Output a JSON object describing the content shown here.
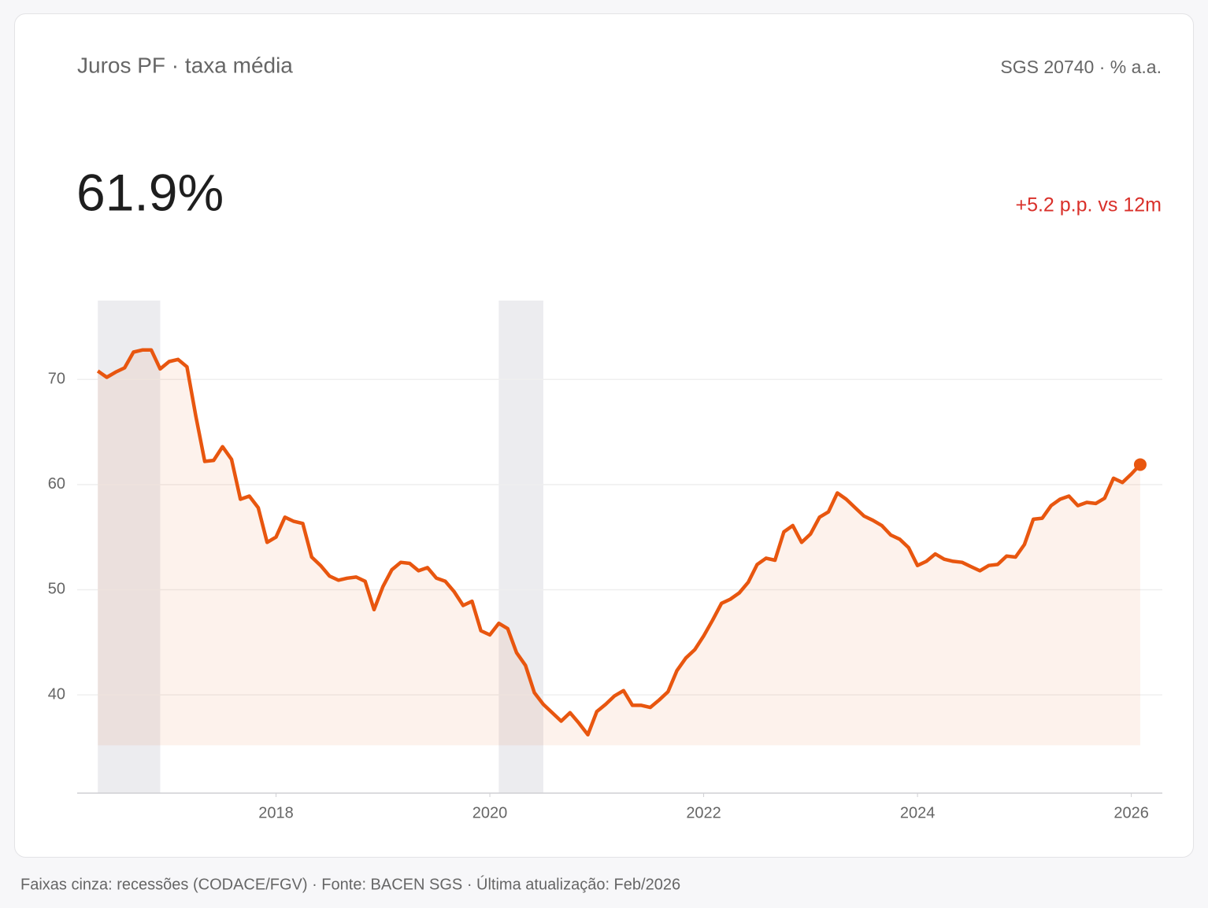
{
  "chart_data": {
    "type": "line",
    "title": "Juros PF · taxa média",
    "source": "SGS 20740  ·  % a.a.",
    "value_label": "61.9%",
    "change_label": "+5.2 p.p. vs 12m",
    "footer": "Faixas cinza: recessões (CODACE/FGV)  ·  Fonte: BACEN SGS  ·  Última atualização: Feb/2026",
    "x": [
      "2016-05",
      "2016-06",
      "2016-07",
      "2016-08",
      "2016-09",
      "2016-10",
      "2016-11",
      "2016-12",
      "2017-01",
      "2017-02",
      "2017-03",
      "2017-04",
      "2017-05",
      "2017-06",
      "2017-07",
      "2017-08",
      "2017-09",
      "2017-10",
      "2017-11",
      "2017-12",
      "2018-01",
      "2018-02",
      "2018-03",
      "2018-04",
      "2018-05",
      "2018-06",
      "2018-07",
      "2018-08",
      "2018-09",
      "2018-10",
      "2018-11",
      "2018-12",
      "2019-01",
      "2019-02",
      "2019-03",
      "2019-04",
      "2019-05",
      "2019-06",
      "2019-07",
      "2019-08",
      "2019-09",
      "2019-10",
      "2019-11",
      "2019-12",
      "2020-01",
      "2020-02",
      "2020-03",
      "2020-04",
      "2020-05",
      "2020-06",
      "2020-07",
      "2020-08",
      "2020-09",
      "2020-10",
      "2020-11",
      "2020-12",
      "2021-01",
      "2021-02",
      "2021-03",
      "2021-04",
      "2021-05",
      "2021-06",
      "2021-07",
      "2021-08",
      "2021-09",
      "2021-10",
      "2021-11",
      "2021-12",
      "2022-01",
      "2022-02",
      "2022-03",
      "2022-04",
      "2022-05",
      "2022-06",
      "2022-07",
      "2022-08",
      "2022-09",
      "2022-10",
      "2022-11",
      "2022-12",
      "2023-01",
      "2023-02",
      "2023-03",
      "2023-04",
      "2023-05",
      "2023-06",
      "2023-07",
      "2023-08",
      "2023-09",
      "2023-10",
      "2023-11",
      "2023-12",
      "2024-01",
      "2024-02",
      "2024-03",
      "2024-04",
      "2024-05",
      "2024-06",
      "2024-07",
      "2024-08",
      "2024-09",
      "2024-10",
      "2024-11",
      "2024-12",
      "2025-01",
      "2025-02",
      "2025-03",
      "2025-04",
      "2025-05",
      "2025-06",
      "2025-07",
      "2025-08",
      "2025-09",
      "2025-10",
      "2025-11",
      "2025-12",
      "2026-01",
      "2026-02"
    ],
    "series": [
      {
        "name": "Juros PF",
        "color": "#e8560f",
        "values": [
          70.8,
          70.2,
          70.7,
          71.1,
          72.6,
          72.8,
          72.8,
          71.0,
          71.7,
          71.9,
          71.2,
          66.5,
          62.2,
          62.3,
          63.6,
          62.4,
          58.6,
          58.9,
          57.8,
          54.5,
          55.0,
          56.9,
          56.5,
          56.3,
          53.1,
          52.3,
          51.3,
          50.9,
          51.1,
          51.2,
          50.8,
          48.1,
          50.3,
          51.9,
          52.6,
          52.5,
          51.8,
          52.1,
          51.1,
          50.8,
          49.8,
          48.5,
          48.9,
          46.1,
          45.7,
          46.8,
          46.3,
          44.0,
          42.8,
          40.2,
          39.1,
          38.3,
          37.5,
          38.3,
          37.3,
          36.2,
          38.4,
          39.1,
          39.9,
          40.4,
          39.0,
          39.0,
          38.8,
          39.5,
          40.3,
          42.3,
          43.5,
          44.3,
          45.6,
          47.1,
          48.7,
          49.1,
          49.7,
          50.7,
          52.4,
          53.0,
          52.8,
          55.5,
          56.1,
          54.5,
          55.3,
          56.9,
          57.4,
          59.2,
          58.6,
          57.8,
          57.0,
          56.6,
          56.1,
          55.2,
          54.8,
          54.0,
          52.3,
          52.7,
          53.4,
          52.9,
          52.7,
          52.6,
          52.2,
          51.8,
          52.3,
          52.4,
          53.2,
          53.1,
          54.3,
          56.7,
          56.8,
          58.0,
          58.6,
          58.9,
          58.0,
          58.3,
          58.2,
          58.7,
          60.6,
          60.2,
          61.0,
          61.9
        ]
      }
    ],
    "recessions": [
      {
        "start": "2016-05",
        "end": "2016-12"
      },
      {
        "start": "2020-02",
        "end": "2020-07"
      }
    ],
    "xlim": [
      2016.14,
      2026.29
    ],
    "xticks": [
      2018,
      2020,
      2022,
      2024,
      2026
    ],
    "ylim": [
      30.65,
      77.5
    ],
    "yticks": [
      40,
      50,
      60,
      70
    ],
    "grid": true
  }
}
